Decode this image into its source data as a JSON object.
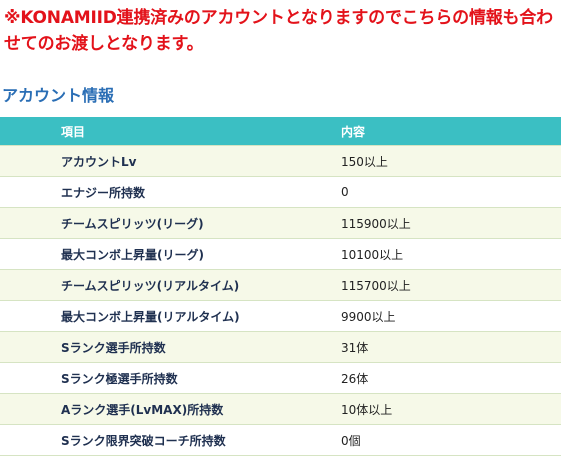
{
  "notice": {
    "text": "※KONAMIID連携済みのアカウントとなりますのでこちらの情報も合わせてのお渡しとなります。",
    "color": "#e3121a"
  },
  "section": {
    "title": "アカウント情報"
  },
  "table": {
    "header_color": "#3bbfc3",
    "headers": {
      "item": "項目",
      "value": "内容"
    },
    "rows": [
      {
        "item": "アカウントLv",
        "value": "150以上"
      },
      {
        "item": "エナジー所持数",
        "value": "0"
      },
      {
        "item": "チームスピリッツ(リーグ)",
        "value": "115900以上"
      },
      {
        "item": "最大コンボ上昇量(リーグ)",
        "value": "10100以上"
      },
      {
        "item": "チームスピリッツ(リアルタイム)",
        "value": "115700以上"
      },
      {
        "item": "最大コンボ上昇量(リアルタイム)",
        "value": "9900以上"
      },
      {
        "item": "Sランク選手所持数",
        "value": "31体"
      },
      {
        "item": "Sランク極選手所持数",
        "value": "26体"
      },
      {
        "item": "Aランク選手(LvMAX)所持数",
        "value": "10体以上"
      },
      {
        "item": "Sランク限界突破コーチ所持数",
        "value": "0個"
      }
    ]
  }
}
